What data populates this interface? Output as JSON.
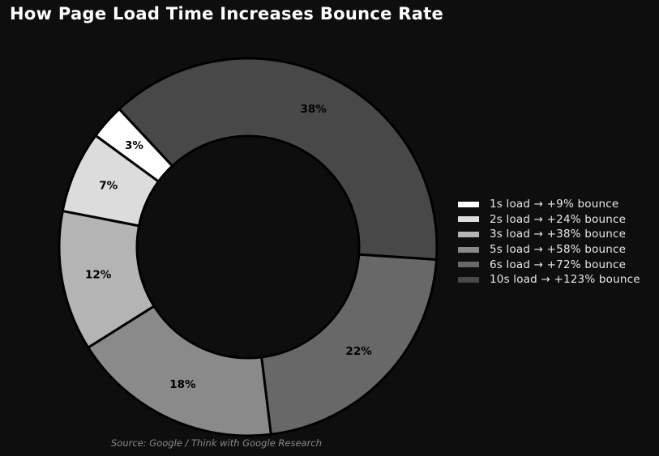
{
  "chart_data": {
    "type": "pie",
    "title": "How Page Load Time Increases Bounce Rate",
    "slices": [
      {
        "value": 3,
        "label": "3%",
        "legend": "1s load → +9% bounce",
        "color": "#ffffff"
      },
      {
        "value": 7,
        "label": "7%",
        "legend": "2s load → +24% bounce",
        "color": "#dcdcdc"
      },
      {
        "value": 12,
        "label": "12%",
        "legend": "3s load → +38% bounce",
        "color": "#b4b4b4"
      },
      {
        "value": 18,
        "label": "18%",
        "legend": "5s load → +58% bounce",
        "color": "#8a8a8a"
      },
      {
        "value": 22,
        "label": "22%",
        "legend": "6s load → +72% bounce",
        "color": "#686868"
      },
      {
        "value": 38,
        "label": "38%",
        "legend": "10s load → +123% bounce",
        "color": "#484848"
      }
    ],
    "legend_position": "right",
    "source": "Source: Google / Think with Google Research"
  },
  "colors": {
    "background": "#0e0e0e",
    "slice_edge": "#000000",
    "label_text": "#000000"
  }
}
